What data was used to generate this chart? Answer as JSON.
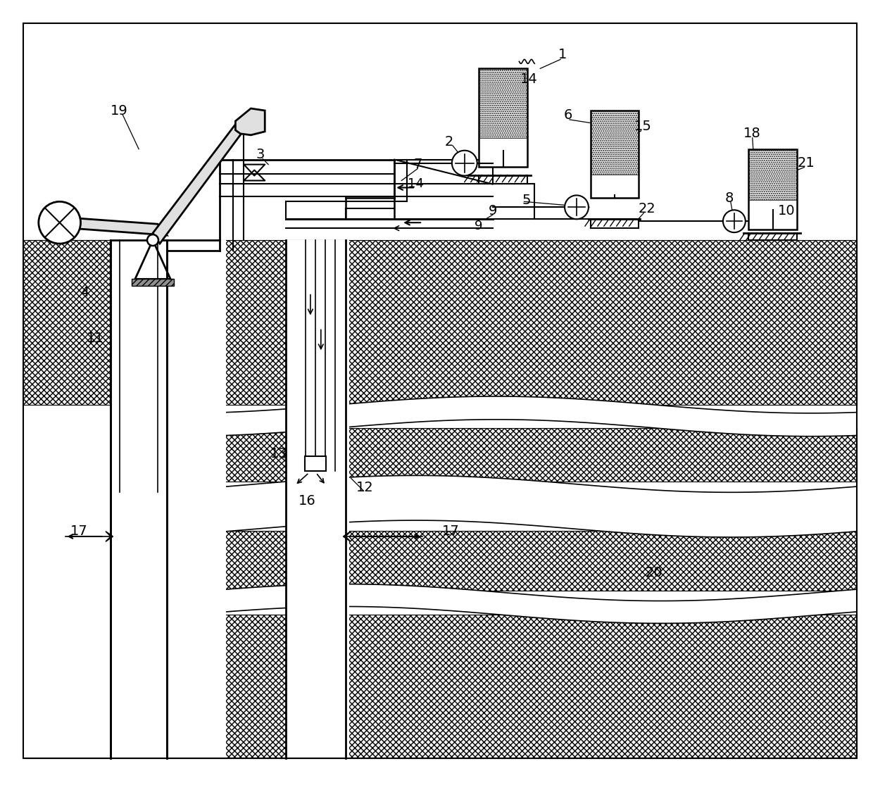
{
  "bg_color": "#ffffff",
  "lc": "#000000",
  "figsize": [
    12.4,
    11.15
  ],
  "dpi": 100
}
